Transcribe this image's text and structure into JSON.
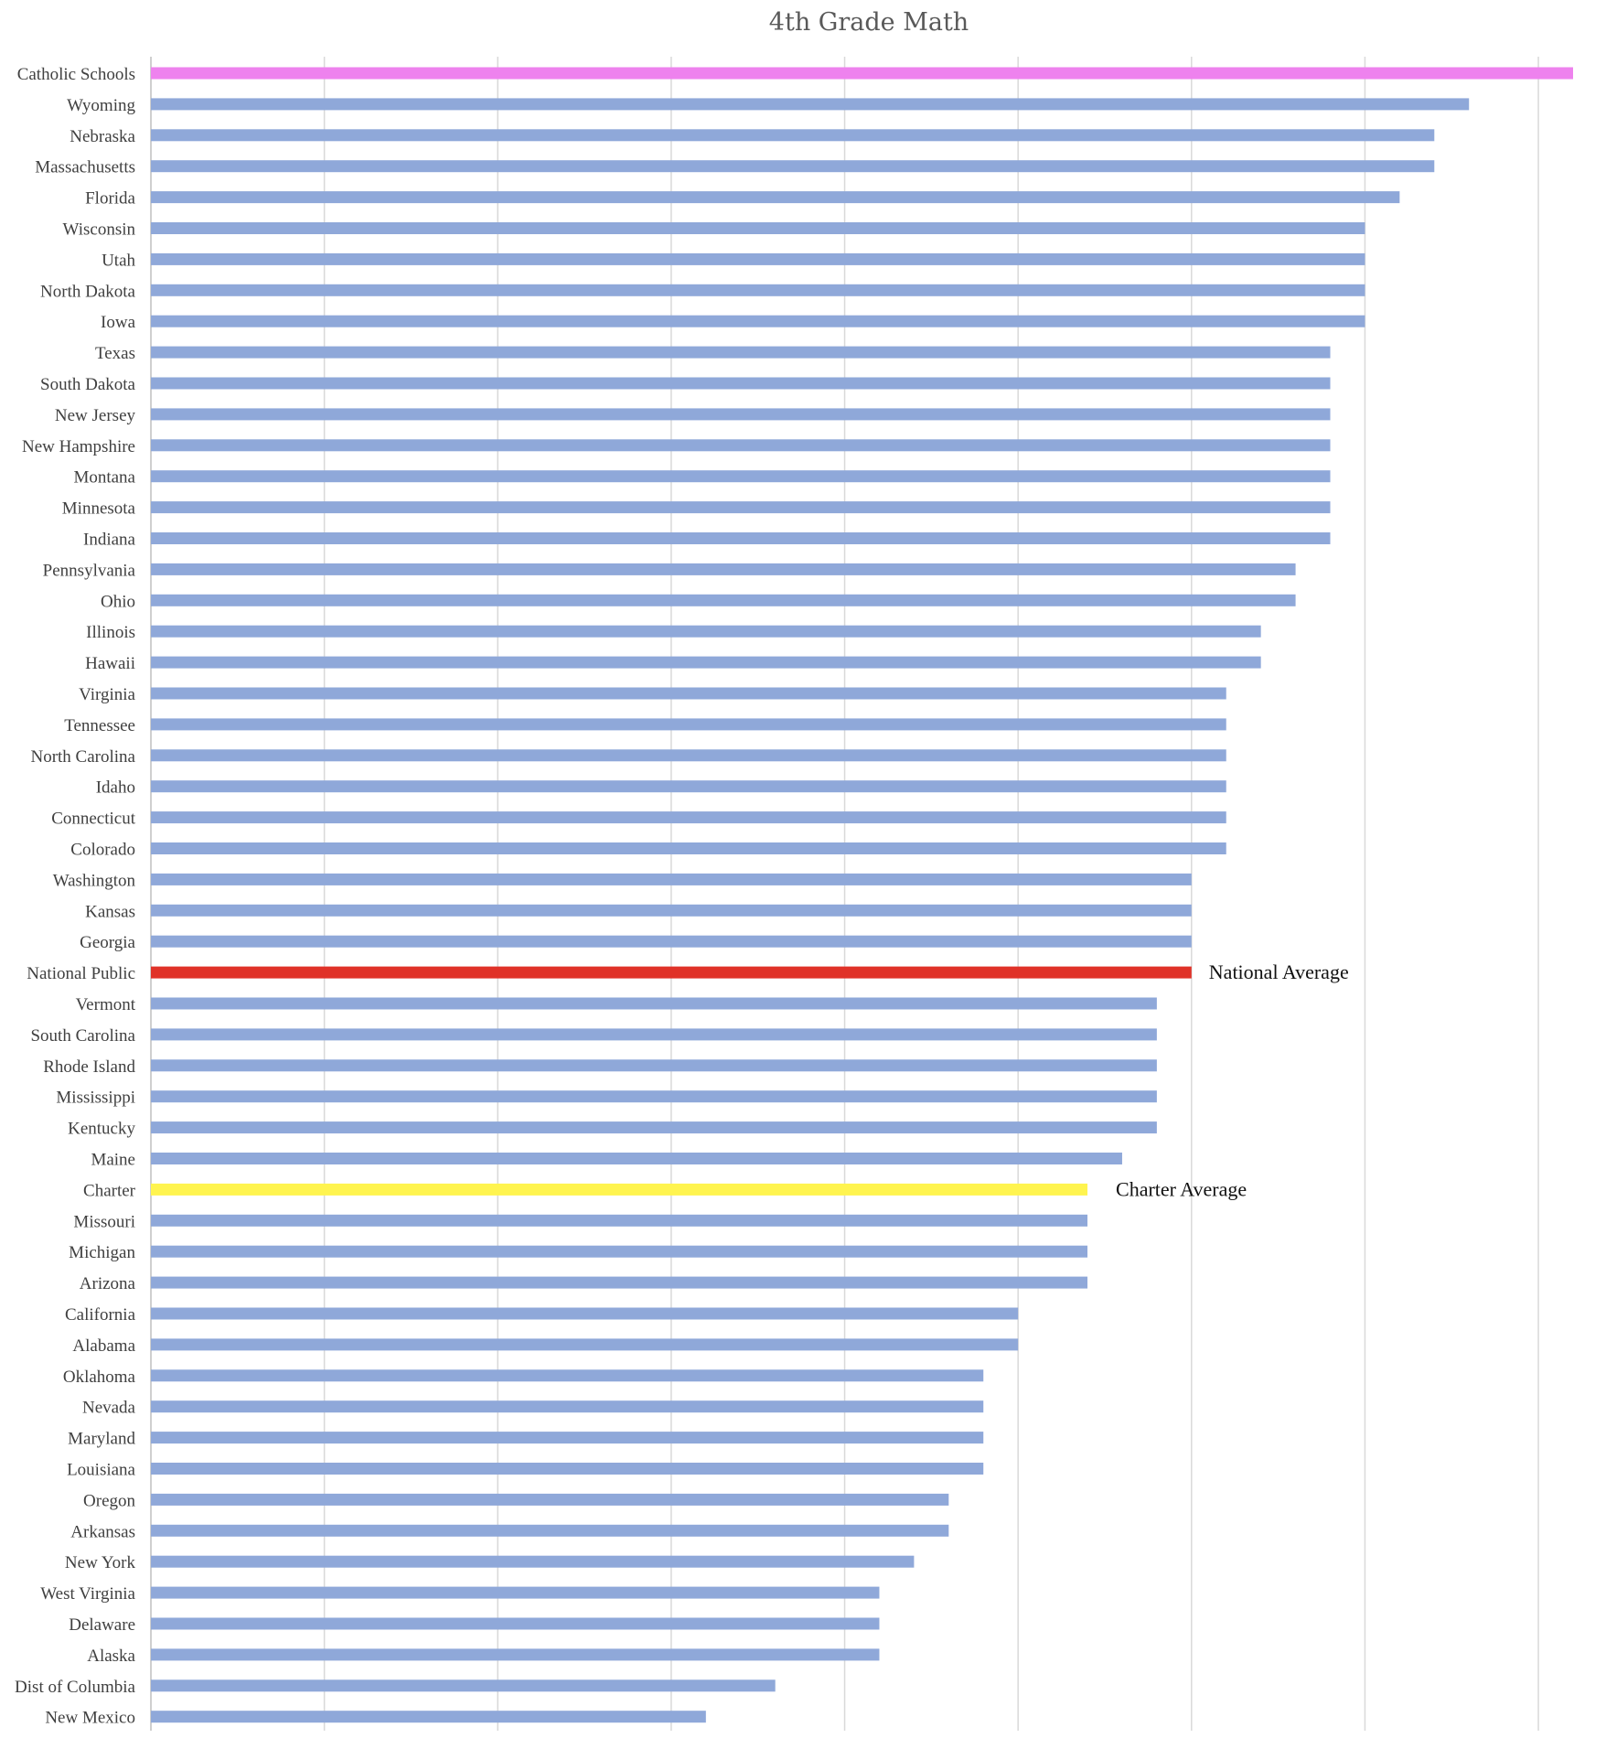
{
  "chart_data": {
    "type": "bar",
    "orientation": "horizontal",
    "title": "4th Grade Math",
    "xlabel": "",
    "ylabel": "",
    "xlim": [
      0,
      41
    ],
    "grid": true,
    "legend": "none",
    "default_color": "#8fa8d9",
    "categories": [
      "Catholic Schools",
      "Wyoming",
      "Nebraska",
      "Massachusetts",
      "Florida",
      "Wisconsin",
      "Utah",
      "North Dakota",
      "Iowa",
      "Texas",
      "South Dakota",
      "New Jersey",
      "New Hampshire",
      "Montana",
      "Minnesota",
      "Indiana",
      "Pennsylvania",
      "Ohio",
      "Illinois",
      "Hawaii",
      "Virginia",
      "Tennessee",
      "North Carolina",
      "Idaho",
      "Connecticut",
      "Colorado",
      "Washington",
      "Kansas",
      "Georgia",
      "National Public",
      "Vermont",
      "South Carolina",
      "Rhode Island",
      "Mississippi",
      "Kentucky",
      "Maine",
      "Charter",
      "Missouri",
      "Michigan",
      "Arizona",
      "California",
      "Alabama",
      "Oklahoma",
      "Nevada",
      "Maryland",
      "Louisiana",
      "Oregon",
      "Arkansas",
      "New York",
      "West Virginia",
      "Delaware",
      "Alaska",
      "Dist of Columbia",
      "New Mexico"
    ],
    "values": [
      41,
      38,
      37,
      37,
      36,
      35,
      35,
      35,
      35,
      34,
      34,
      34,
      34,
      34,
      34,
      34,
      33,
      33,
      32,
      32,
      31,
      31,
      31,
      31,
      31,
      31,
      30,
      30,
      30,
      30,
      29,
      29,
      29,
      29,
      29,
      28,
      27,
      27,
      27,
      27,
      25,
      25,
      24,
      24,
      24,
      24,
      23,
      23,
      22,
      21,
      21,
      21,
      18,
      16
    ],
    "highlights": [
      {
        "category": "Catholic Schools",
        "color": "#ee82ee"
      },
      {
        "category": "National Public",
        "color": "#e03228",
        "annotation": "National Average"
      },
      {
        "category": "Charter",
        "color": "#fff44f",
        "annotation": "Charter Average"
      }
    ]
  }
}
